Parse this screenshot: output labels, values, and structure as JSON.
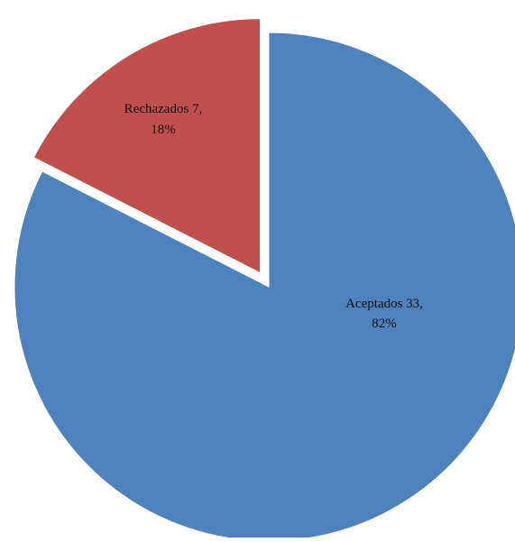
{
  "chart_data": {
    "type": "pie",
    "title": "",
    "slices": [
      {
        "label": "Aceptados",
        "value": 33,
        "percent": "82%",
        "color": "#4f81bd",
        "exploded": false
      },
      {
        "label": "Rechazados",
        "value": 7,
        "percent": "18%",
        "color": "#c0504d",
        "exploded": true
      }
    ],
    "data_labels": [
      {
        "line1": "Aceptados 33,",
        "line2": "82%"
      },
      {
        "line1": "Rechazados 7,",
        "line2": "18%"
      }
    ],
    "legend": "none"
  }
}
